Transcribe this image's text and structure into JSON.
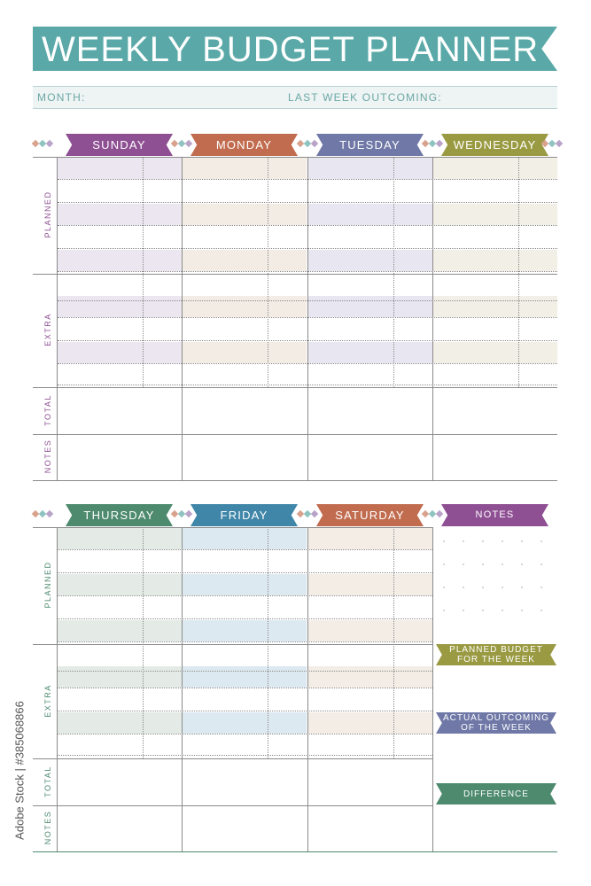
{
  "header": {
    "title": "WEEKLY BUDGET PLANNER",
    "month_label": "MONTH:",
    "last_week_label": "LAST WEEK OUTCOMING:"
  },
  "week1": {
    "days": [
      {
        "label": "SUNDAY",
        "color": "#8e4f93",
        "band": "#ebe6ef"
      },
      {
        "label": "MONDAY",
        "color": "#c16c4f",
        "band": "#f3ece4"
      },
      {
        "label": "TUESDAY",
        "color": "#6f78a6",
        "band": "#e8e6f0"
      },
      {
        "label": "WEDNESDAY",
        "color": "#9a9a43",
        "band": "#f2efe6"
      }
    ],
    "row_labels": {
      "planned": "PLANNED",
      "extra": "EXTRA",
      "total": "TOTAL",
      "notes": "NOTES"
    },
    "label_color": "#8e4f93"
  },
  "week2": {
    "days": [
      {
        "label": "THURSDAY",
        "color": "#4d8a6e",
        "band": "#e4ebe6"
      },
      {
        "label": "FRIDAY",
        "color": "#3f86a8",
        "band": "#dde9f1"
      },
      {
        "label": "SATURDAY",
        "color": "#c16c4f",
        "band": "#f3ede6"
      }
    ],
    "row_labels": {
      "planned": "PLANNED",
      "extra": "EXTRA",
      "total": "TOTAL",
      "notes": "NOTES"
    },
    "label_color": "#4d8a6e"
  },
  "sidebar": {
    "notes_label": "NOTES",
    "notes_color": "#8e4f93",
    "planned_budget": "PLANNED BUDGET\nFOR THE WEEK",
    "planned_budget_color": "#9a9a43",
    "actual_outcoming": "ACTUAL OUTCOMING\nOF THE WEEK",
    "actual_outcoming_color": "#6f78a6",
    "difference": "DIFFERENCE",
    "difference_color": "#4d8a6e"
  },
  "stock_id": "Adobe Stock | #385068866",
  "colors": {
    "title_teal": "#5aa9a8",
    "diamond_a": "#d9a28c",
    "diamond_b": "#8fc3c0",
    "diamond_c": "#b9a3c8"
  }
}
